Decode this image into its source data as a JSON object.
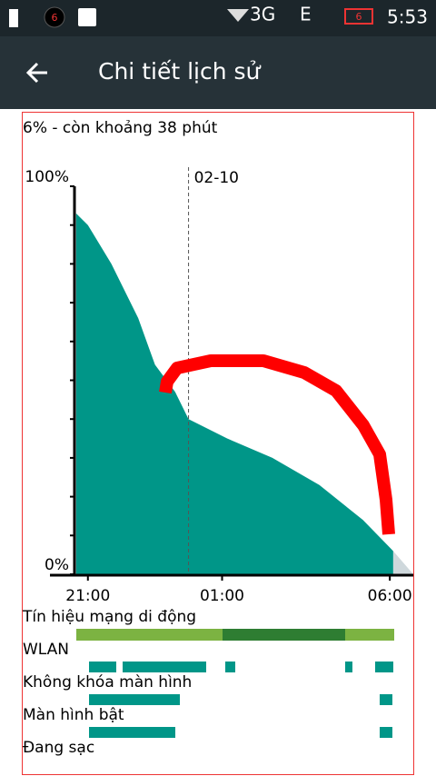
{
  "status_bar": {
    "notification_count": "6",
    "network_1": "3G",
    "network_2": "E",
    "battery": "6",
    "time": "5:53"
  },
  "toolbar": {
    "title": "Chi tiết lịch sử"
  },
  "summary": "6% - còn khoảng 38 phút",
  "chart": {
    "type": "area",
    "x": [
      20.65,
      21.0,
      21.7,
      22.5,
      23.0,
      23.6,
      24.0,
      25.15,
      26.5,
      27.9,
      29.2,
      30.1
    ],
    "values": [
      93,
      90,
      80,
      66,
      54,
      47,
      40,
      35,
      30,
      23,
      14,
      6
    ],
    "color": "#009688",
    "projection": {
      "x": [
        30.1,
        30.7
      ],
      "values": [
        6,
        0
      ],
      "color": "#cfd8dc"
    },
    "xlim": [
      20.6,
      30.7
    ],
    "ylim": [
      0,
      100
    ],
    "xticks": [
      {
        "value": 21,
        "label": "21:00"
      },
      {
        "value": 25,
        "label": "01:00"
      },
      {
        "value": 30,
        "label": "06:00"
      }
    ],
    "yticks": [
      {
        "value": 0,
        "label": "0%"
      },
      {
        "value": 100,
        "label": "100%"
      }
    ],
    "minor_yticks": [
      10,
      20,
      30,
      40,
      50,
      60,
      70,
      80,
      90
    ],
    "date_marker": {
      "value": 24,
      "label": "02-10"
    }
  },
  "rows": [
    "Tín hiệu mạng di động",
    "WLAN",
    "Không khóa màn hình",
    "Màn hình bật",
    "Đang sạc"
  ]
}
